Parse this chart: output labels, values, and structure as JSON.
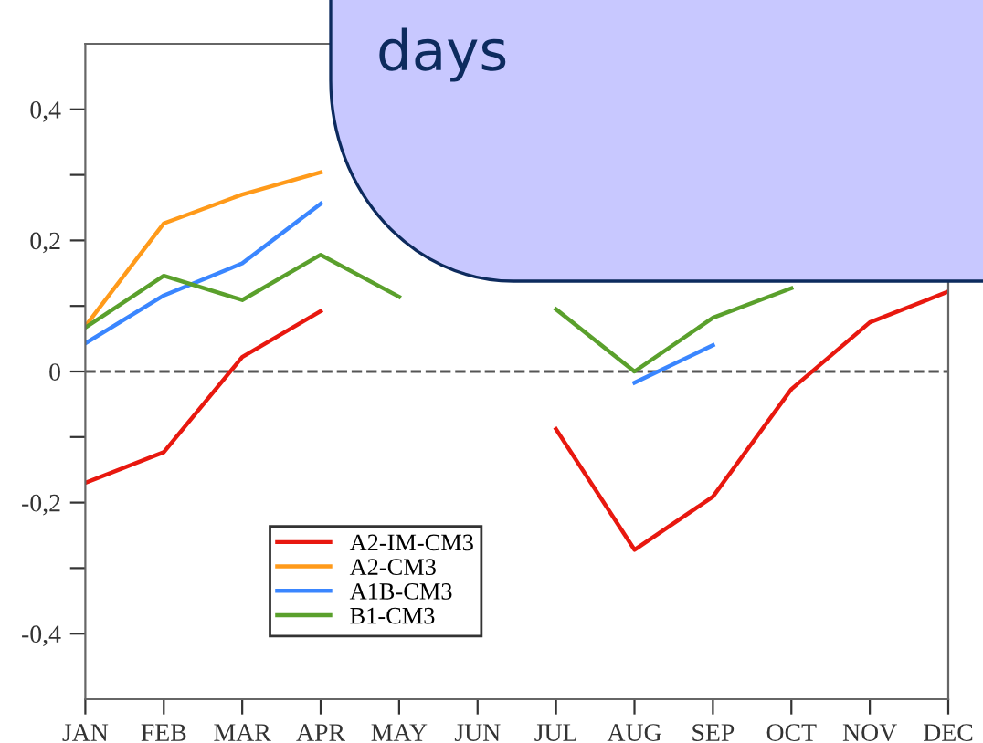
{
  "chart_data": {
    "type": "line",
    "categories": [
      "JAN",
      "FEB",
      "MAR",
      "APR",
      "MAY",
      "JUN",
      "JUL",
      "AUG",
      "SEP",
      "OCT",
      "NOV",
      "DEC"
    ],
    "series": [
      {
        "name": "A2-IM-CM3",
        "color": "#e8180f",
        "values": [
          -0.17,
          -0.123,
          0.022,
          0.092,
          null,
          null,
          -0.088,
          -0.272,
          -0.191,
          -0.027,
          0.075,
          0.122
        ]
      },
      {
        "name": "A2-CM3",
        "color": "#ff9a1a",
        "values": [
          0.069,
          0.226,
          0.27,
          0.304,
          null,
          null,
          null,
          null,
          null,
          null,
          null,
          null
        ]
      },
      {
        "name": "A1B-CM3",
        "color": "#3a86ff",
        "values": [
          0.043,
          0.116,
          0.165,
          0.256,
          null,
          null,
          null,
          -0.017,
          0.04,
          null,
          null,
          null
        ]
      },
      {
        "name": "B1-CM3",
        "color": "#5aa02c",
        "values": [
          0.067,
          0.146,
          0.109,
          0.178,
          0.114,
          null,
          0.095,
          0.0,
          0.082,
          0.127,
          null,
          null
        ]
      }
    ],
    "ylim": [
      -0.5,
      0.5
    ],
    "yticks": [
      {
        "value": -0.4,
        "label": "-0,4"
      },
      {
        "value": -0.3,
        "label": null
      },
      {
        "value": -0.2,
        "label": "-0,2"
      },
      {
        "value": -0.1,
        "label": null
      },
      0,
      {
        "value": 0.1,
        "label": null
      },
      {
        "value": 0.2,
        "label": "0,2"
      },
      {
        "value": 0.3,
        "label": null
      },
      {
        "value": 0.4,
        "label": "0,4"
      }
    ],
    "ref_lines": [
      {
        "axis": "y",
        "value": 0,
        "color": "#555555",
        "line_style": "dashed"
      }
    ],
    "annotations": [
      "days"
    ],
    "legend": "bottom left",
    "grid": false,
    "line_style": "solid",
    "marker": "none"
  }
}
